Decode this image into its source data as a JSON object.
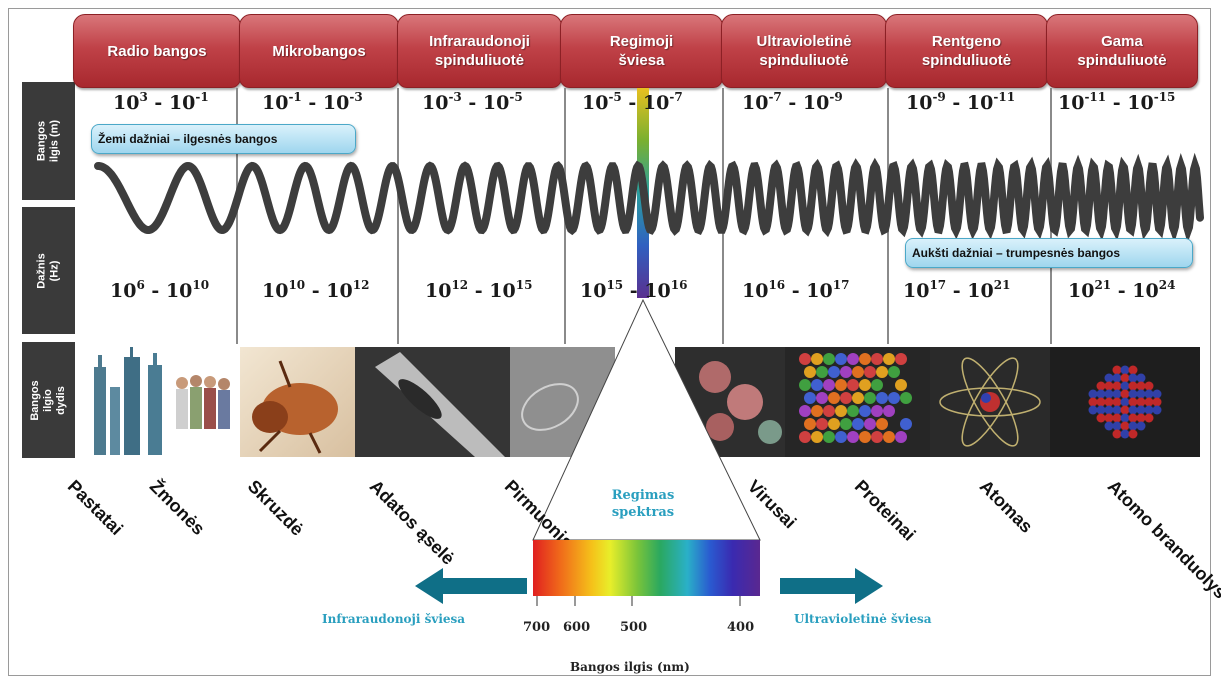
{
  "side_labels": {
    "wavelength": "Bangos ilgis (m)",
    "frequency": "Dažnis (Hz)",
    "size": "Bangos ilgio\ndydis"
  },
  "bands": [
    {
      "label": "Radio bangos",
      "wl_base1": "10",
      "wl_exp1": "3",
      "wl_base2": "10",
      "wl_exp2": "-1",
      "f_base1": "10",
      "f_exp1": "6",
      "f_base2": "10",
      "f_exp2": "10"
    },
    {
      "label": "Mikrobangos",
      "wl_base1": "10",
      "wl_exp1": "-1",
      "wl_base2": "10",
      "wl_exp2": "-3",
      "f_base1": "10",
      "f_exp1": "10",
      "f_base2": "10",
      "f_exp2": "12"
    },
    {
      "label": "Infraraudonoji\nspinduliuotė",
      "wl_base1": "10",
      "wl_exp1": "-3",
      "wl_base2": "10",
      "wl_exp2": "-5",
      "f_base1": "10",
      "f_exp1": "12",
      "f_base2": "10",
      "f_exp2": "15"
    },
    {
      "label": "Regimoji\nšviesa",
      "wl_base1": "10",
      "wl_exp1": "-5",
      "wl_base2": "10",
      "wl_exp2": "-7",
      "f_base1": "10",
      "f_exp1": "15",
      "f_base2": "10",
      "f_exp2": "16"
    },
    {
      "label": "Ultravioletinė\nspinduliuotė",
      "wl_base1": "10",
      "wl_exp1": "-7",
      "wl_base2": "10",
      "wl_exp2": "-9",
      "f_base1": "10",
      "f_exp1": "16",
      "f_base2": "10",
      "f_exp2": "17"
    },
    {
      "label": "Rentgeno\nspinduliuotė",
      "wl_base1": "10",
      "wl_exp1": "-9",
      "wl_base2": "10",
      "wl_exp2": "-11",
      "f_base1": "10",
      "f_exp1": "17",
      "f_base2": "10",
      "f_exp2": "21"
    },
    {
      "label": "Gama\nspinduliuotė",
      "wl_base1": "10",
      "wl_exp1": "-11",
      "wl_base2": "10",
      "wl_exp2": "-15",
      "f_base1": "10",
      "f_exp1": "21",
      "f_base2": "10",
      "f_exp2": "24"
    }
  ],
  "range_separator": " - ",
  "callouts": {
    "low": "Žemi dažniai – ilgesnės bangos",
    "high": "Aukšti dažniai – trumpesnės bangos"
  },
  "objects": [
    "Pastatai",
    "Žmonės",
    "Skruzdė",
    "Adatos ąselė",
    "Pirmuonis",
    "Virusai",
    "Proteinai",
    "Atomas",
    "Atomo branduolys"
  ],
  "spectrum": {
    "title": "Regimas\nspektras",
    "ticks": [
      "700",
      "600",
      "500",
      "400"
    ],
    "left_label": "Infraraudonoji šviesa",
    "right_label": "Ultravioletinė šviesa",
    "xlabel": "Bangos ilgis (nm)"
  },
  "colors": {
    "band_red": "#b8343a",
    "side_dark": "#3a3a3a",
    "callout_blue": "#9fd6ee",
    "arrow_teal": "#0f6f87",
    "caption_teal": "#2a9fbf"
  }
}
